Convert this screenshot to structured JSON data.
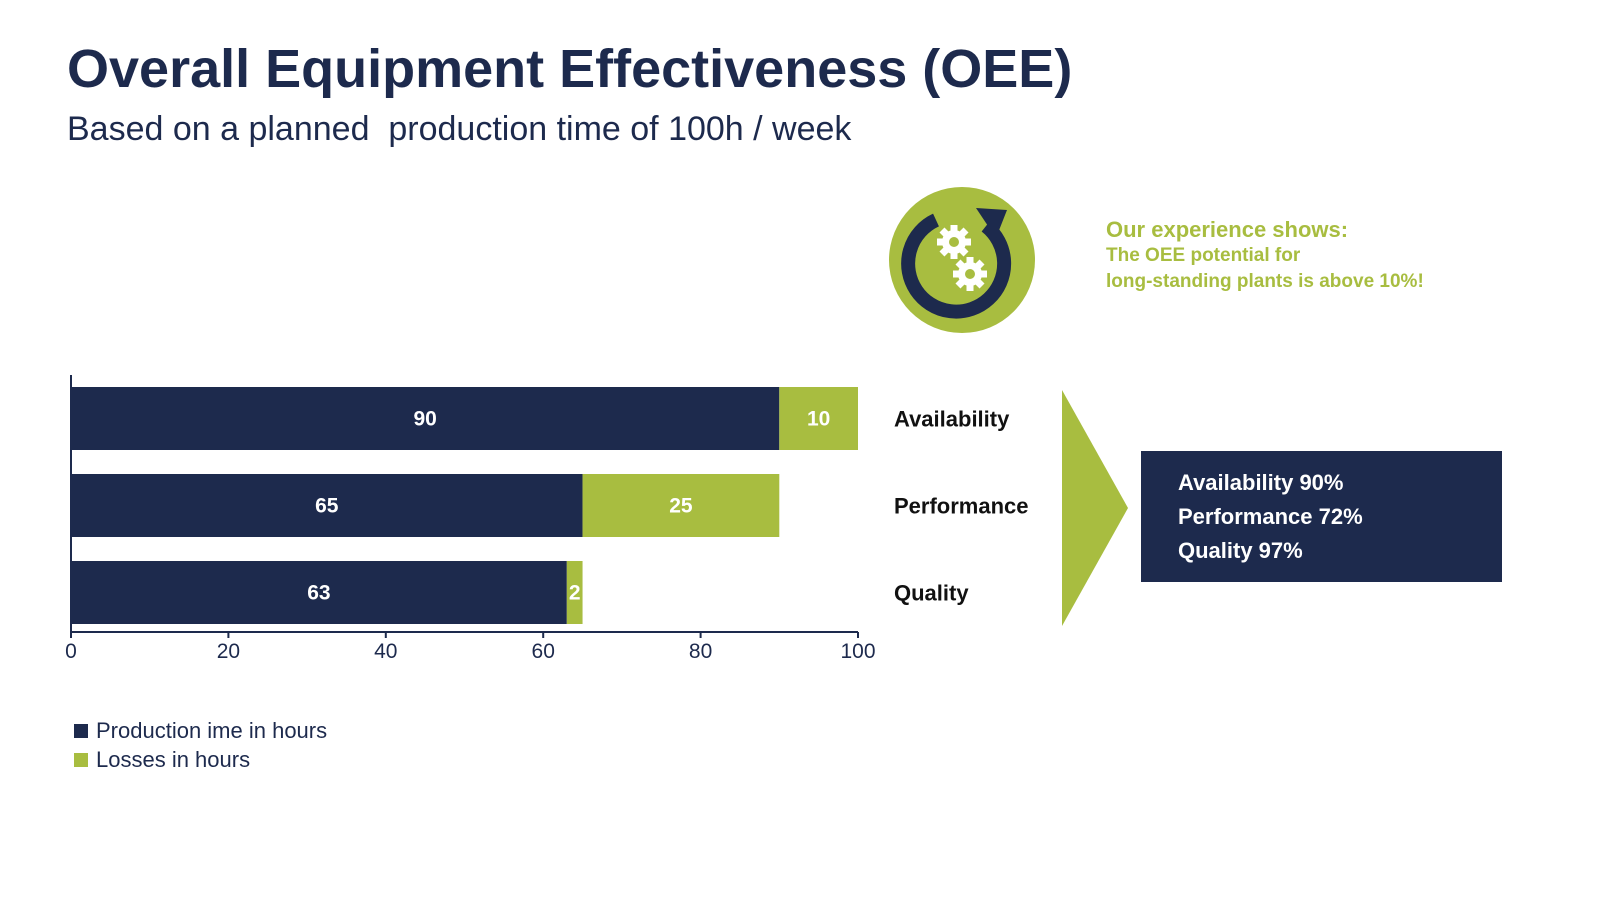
{
  "title": "Overall Equipment Effectiveness (OEE)",
  "subtitle": "Based on a planned  production time of 100h / week",
  "colors": {
    "navy": "#1d2a4d",
    "green": "#a8bd40"
  },
  "icon": {
    "name": "gears-cycle-icon"
  },
  "experience": {
    "title": "Our experience shows:",
    "line1": "The OEE potential for",
    "line2": "long-standing plants is above 10%!"
  },
  "results": {
    "availability": "Availability 90%",
    "performance": "Performance 72%",
    "quality": "Quality 97%"
  },
  "chart_data": {
    "type": "bar",
    "orientation": "horizontal",
    "stacked": true,
    "categories": [
      "Availability",
      "Performance",
      "Quality"
    ],
    "series": [
      {
        "name": "Production ime in hours",
        "color": "#1d2a4d",
        "values": [
          90,
          65,
          63
        ]
      },
      {
        "name": "Losses in hours",
        "color": "#a8bd40",
        "values": [
          10,
          25,
          2
        ]
      }
    ],
    "xlim": [
      0,
      100
    ],
    "xticks": [
      0,
      20,
      40,
      60,
      80,
      100
    ],
    "grid": false,
    "legend": "bottom-left"
  }
}
